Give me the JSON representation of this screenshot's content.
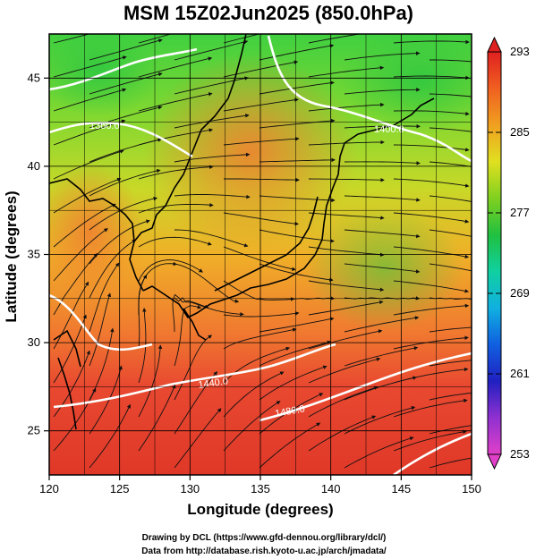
{
  "title": "MSM 15Z02Jun2025 (850.0hPa)",
  "xlabel": "Longitude (degrees)",
  "ylabel": "Latitude  (degrees)",
  "credits": {
    "line1": "Drawing by DCL (https://www.gfd-dennou.org/library/dcl/)",
    "line2": "Data from http://database.rish.kyoto-u.ac.jp/arch/jmadata/"
  },
  "map": {
    "lon_range": [
      120,
      150
    ],
    "lat_range": [
      22.5,
      47.5
    ],
    "x_ticks": [
      120,
      125,
      130,
      135,
      140,
      145,
      150
    ],
    "x_tick_labels": [
      "120",
      "125",
      "130",
      "135",
      "140",
      "145",
      "150"
    ],
    "y_ticks": [
      25,
      30,
      35,
      40,
      45
    ],
    "y_tick_labels": [
      "25",
      "30",
      "35",
      "40",
      "45"
    ],
    "grid": true
  },
  "colorbar": {
    "min": 253,
    "max": 293,
    "ticks": [
      253,
      261,
      269,
      277,
      285,
      293
    ],
    "tick_labels": [
      "253",
      "261",
      "269",
      "277",
      "285",
      "293"
    ],
    "colors": [
      "#e040c8",
      "#9030d0",
      "#2020c0",
      "#1060e0",
      "#10b0e0",
      "#10d0a0",
      "#20c040",
      "#80d020",
      "#e0e020",
      "#f0a020",
      "#f06020",
      "#e02020"
    ]
  },
  "contours": [
    {
      "label": "1360.0"
    },
    {
      "label": "1400.0"
    },
    {
      "label": "1440.0"
    },
    {
      "label": "1480.0"
    }
  ]
}
